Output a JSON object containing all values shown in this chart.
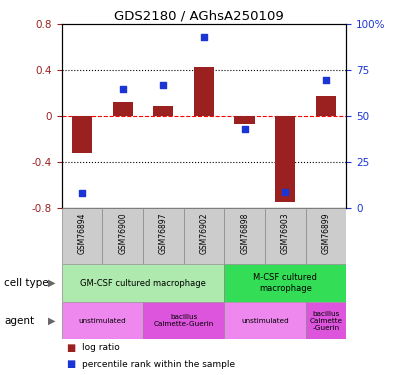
{
  "title": "GDS2180 / AGhsA250109",
  "samples": [
    "GSM76894",
    "GSM76900",
    "GSM76897",
    "GSM76902",
    "GSM76898",
    "GSM76903",
    "GSM76899"
  ],
  "log_ratios": [
    -0.32,
    0.12,
    0.09,
    0.43,
    -0.07,
    -0.75,
    0.18
  ],
  "percentile_ranks": [
    8,
    65,
    67,
    93,
    43,
    9,
    70
  ],
  "ylim_left": [
    -0.8,
    0.8
  ],
  "ylim_right": [
    0,
    100
  ],
  "yticks_left": [
    -0.8,
    -0.4,
    0.0,
    0.4,
    0.8
  ],
  "yticks_right": [
    0,
    25,
    50,
    75,
    100
  ],
  "ytick_labels_left": [
    "-0.8",
    "-0.4",
    "0",
    "0.4",
    "0.8"
  ],
  "ytick_labels_right": [
    "0",
    "25",
    "50",
    "75",
    "100%"
  ],
  "bar_color": "#9B2020",
  "dot_color": "#1a35d4",
  "cell_type_groups": [
    {
      "label": "GM-CSF cultured macrophage",
      "start": 0,
      "end": 3,
      "color": "#AEEAAE"
    },
    {
      "label": "M-CSF cultured\nmacrophage",
      "start": 4,
      "end": 6,
      "color": "#33DD55"
    }
  ],
  "agent_groups": [
    {
      "label": "unstimulated",
      "start": 0,
      "end": 1,
      "color": "#EE88EE"
    },
    {
      "label": "bacillus\nCalmette-Guerin",
      "start": 2,
      "end": 3,
      "color": "#DD55DD"
    },
    {
      "label": "unstimulated",
      "start": 4,
      "end": 5,
      "color": "#EE88EE"
    },
    {
      "label": "bacillus\nCalmette\n-Guerin",
      "start": 6,
      "end": 6,
      "color": "#DD55DD"
    }
  ]
}
